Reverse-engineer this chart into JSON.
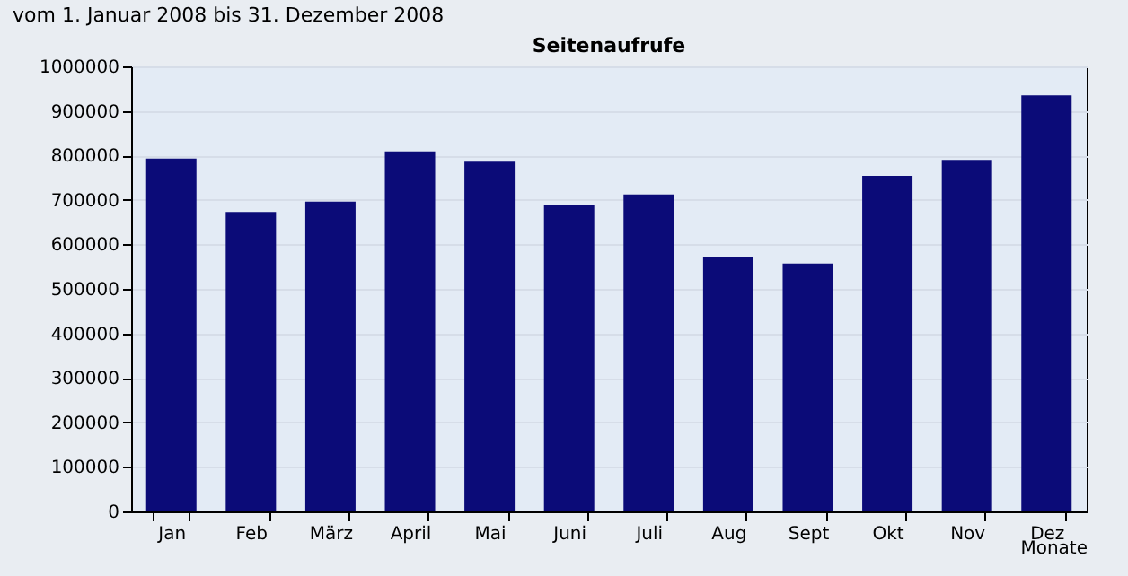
{
  "chart_data": {
    "type": "bar",
    "title": "Seitenaufrufe",
    "xlabel": "Monate",
    "annotations": [
      "vom 1. Januar 2008  bis 31. Dezember 2008"
    ],
    "categories": [
      "Jan",
      "Feb",
      "März",
      "April",
      "Mai",
      "Juni",
      "Juli",
      "Aug",
      "Sept",
      "Okt",
      "Nov",
      "Dez"
    ],
    "values": [
      793000,
      673000,
      696000,
      809000,
      786000,
      689000,
      712000,
      571000,
      557000,
      754000,
      790000,
      935000
    ],
    "color": "#0b0b78",
    "ylim": [
      0,
      1000000
    ],
    "yticks": [
      0,
      100000,
      200000,
      300000,
      400000,
      500000,
      600000,
      700000,
      800000,
      900000,
      1000000
    ],
    "grid": "y"
  }
}
